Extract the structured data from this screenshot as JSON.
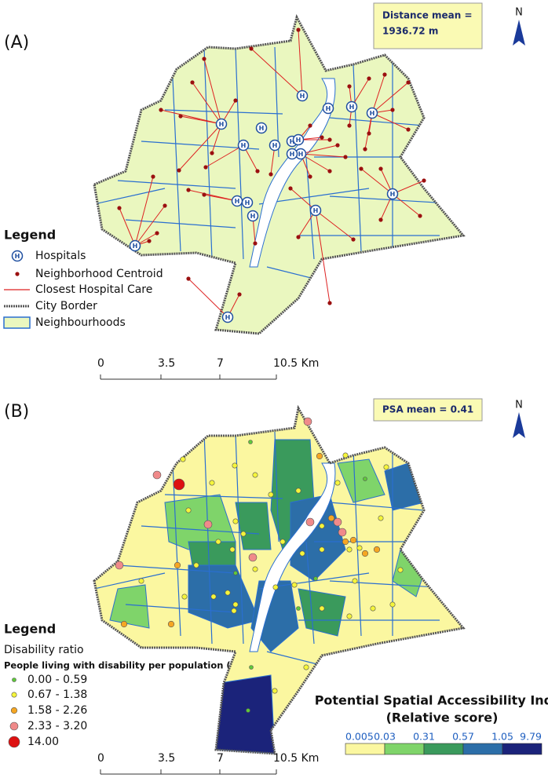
{
  "panel_a": {
    "label": "(A)",
    "annotation": [
      "Distance mean =",
      "1936.72 m"
    ],
    "north": "N",
    "hospital_icon": "H",
    "legend": {
      "title": "Legend",
      "items": [
        "Hospitals",
        "Neighborhood Centroid",
        "Closest Hospital Care",
        "City Border",
        "Neighbourhoods"
      ]
    },
    "scale_bar": [
      "0",
      "3.5",
      "7",
      "10.5 Km"
    ]
  },
  "panel_b": {
    "label": "(B)",
    "annotation": "PSA mean = 0.41",
    "north": "N",
    "legend": {
      "title": "Legend",
      "subtitle": "Disability ratio",
      "note": "People living with disability per population (%)",
      "classes": [
        {
          "label": "0.00 - 0.59",
          "color": "#5fc93a"
        },
        {
          "label": "0.67 - 1.38",
          "color": "#f5f53a"
        },
        {
          "label": "1.58 - 2.26",
          "color": "#f5a623"
        },
        {
          "label": "2.33 - 3.20",
          "color": "#f08a8a"
        },
        {
          "label": "14.00",
          "color": "#dd1111"
        }
      ]
    },
    "index_legend": {
      "title": "Potential Spatial Accessibility Index",
      "subtitle": "(Relative score)",
      "breaks": [
        "0.005",
        "0.03",
        "0.31",
        "0.57",
        "1.05",
        "9.79"
      ],
      "colors": [
        "#fbf7a0",
        "#7fd46a",
        "#3a9a5c",
        "#2c6ea8",
        "#1b237a"
      ]
    },
    "scale_bar": [
      "0",
      "3.5",
      "7",
      "10.5 Km"
    ]
  }
}
